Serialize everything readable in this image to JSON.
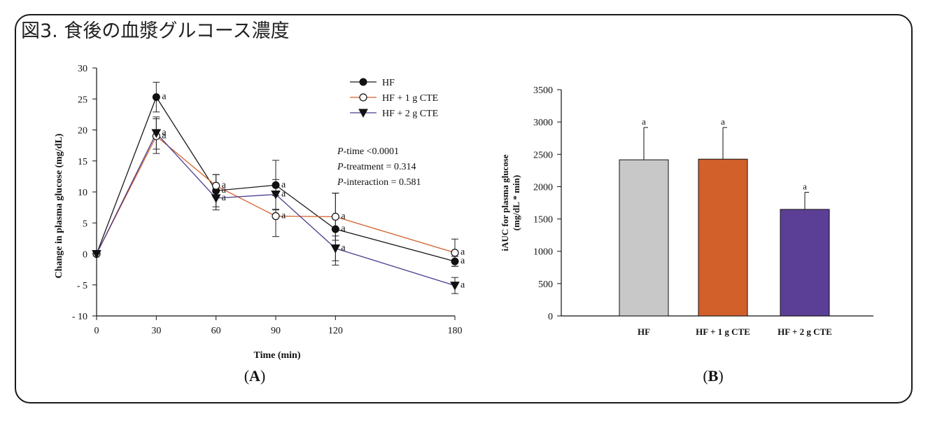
{
  "title": "図3. 食後の血漿グルコース濃度",
  "chart_data": [
    {
      "type": "line",
      "panel_label": "A",
      "xlabel": "Time (min)",
      "ylabel": "Change in plasma glucose (mg/dL)",
      "xlim": [
        0,
        180
      ],
      "ylim": [
        -10,
        30
      ],
      "xticks": [
        0,
        30,
        60,
        90,
        120,
        180
      ],
      "yticks": [
        -10,
        -5,
        0,
        5,
        10,
        15,
        20,
        25,
        30
      ],
      "grid": false,
      "legend_position": "top-right",
      "series": [
        {
          "name": "HF",
          "marker": "filled-circle",
          "color": "#1a1a1a",
          "x": [
            0,
            30,
            60,
            90,
            120,
            180
          ],
          "y": [
            0,
            25.3,
            10.2,
            11.1,
            4.0,
            -1.2
          ],
          "error": [
            0,
            2.4,
            2.6,
            4.0,
            5.8,
            0.8
          ],
          "labels": [
            "",
            "a",
            "a",
            "a",
            "a",
            "a"
          ]
        },
        {
          "name": "HF + 1 g CTE",
          "marker": "open-circle",
          "color": "#d2602a",
          "x": [
            0,
            30,
            60,
            90,
            120,
            180
          ],
          "y": [
            0,
            19.0,
            11.0,
            6.1,
            6.0,
            0.2
          ],
          "error": [
            0,
            2.8,
            1.8,
            3.3,
            3.8,
            2.2
          ],
          "labels": [
            "",
            "a",
            "a",
            "a",
            "a",
            "a"
          ]
        },
        {
          "name": "HF + 2 g CTE",
          "marker": "filled-triangle-down",
          "color": "#4b3c8c",
          "x": [
            0,
            30,
            60,
            90,
            120,
            180
          ],
          "y": [
            0,
            19.5,
            9.0,
            9.6,
            0.9,
            -5.1
          ],
          "error": [
            0,
            2.6,
            1.9,
            2.4,
            2.0,
            1.3
          ],
          "labels": [
            "",
            "a",
            "a",
            "a",
            "a",
            "a"
          ]
        }
      ],
      "annotations": [
        {
          "prefix": "P",
          "text": "-time <0.0001"
        },
        {
          "prefix": "P",
          "text": "-treatment = 0.314"
        },
        {
          "prefix": "P",
          "text": "-interaction = 0.581"
        }
      ]
    },
    {
      "type": "bar",
      "panel_label": "B",
      "xlabel": "",
      "ylabel_lines": [
        "iAUC for plasma glucose",
        "(mg/dL * min)"
      ],
      "ylim": [
        0,
        3500
      ],
      "yticks": [
        0,
        500,
        1000,
        1500,
        2000,
        2500,
        3000,
        3500
      ],
      "grid": false,
      "categories": [
        "HF",
        "HF + 1 g CTE",
        "HF + 2 g CTE"
      ],
      "values": [
        2415,
        2425,
        1648
      ],
      "error": [
        500,
        490,
        265
      ],
      "labels": [
        "a",
        "a",
        "a"
      ],
      "colors": [
        "#c8c8c8",
        "#d2602a",
        "#5b3f96"
      ]
    }
  ]
}
